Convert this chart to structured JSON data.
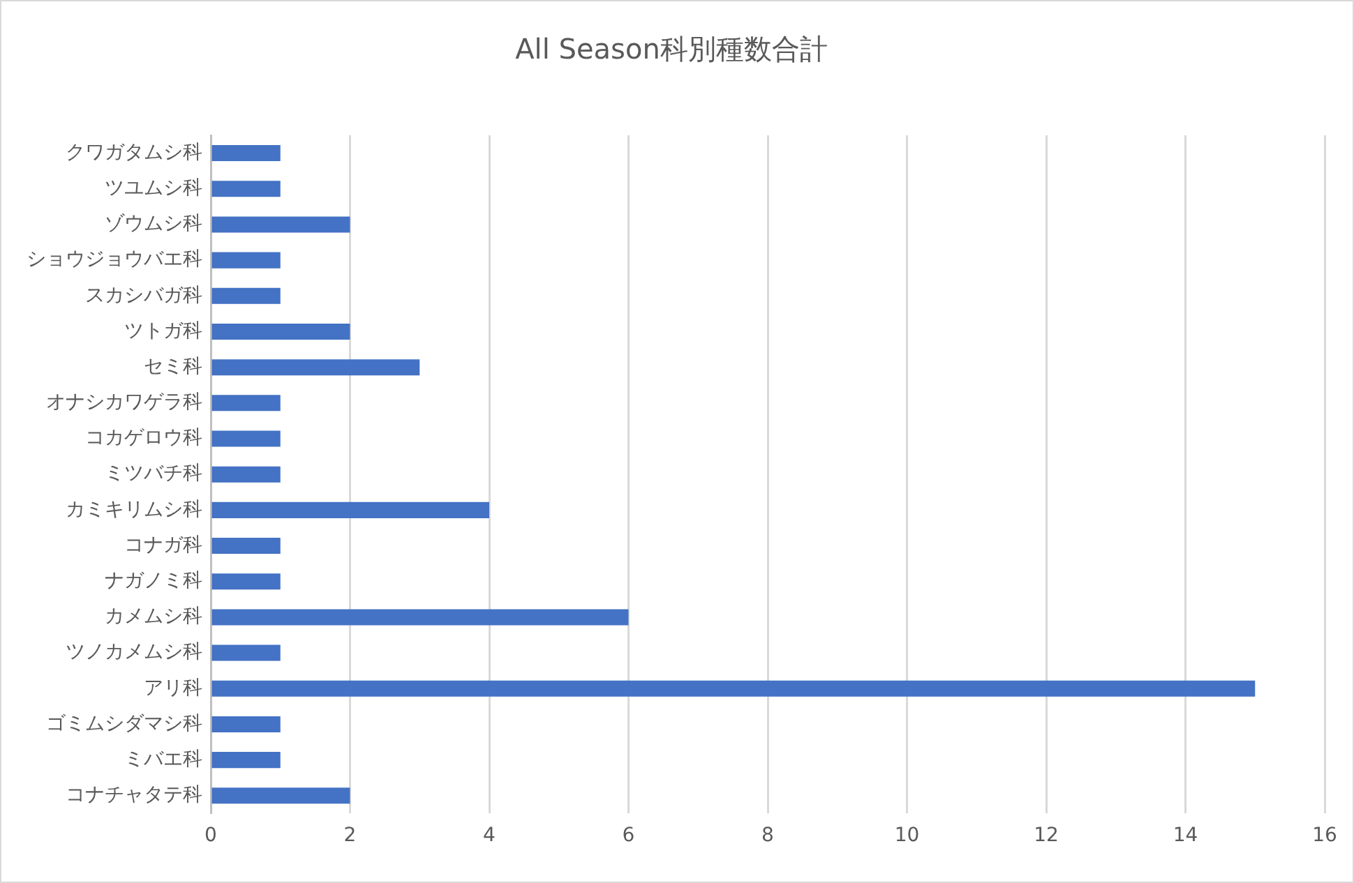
{
  "chart_data": {
    "type": "bar",
    "orientation": "horizontal",
    "title": "All Season科別種数合計",
    "categories": [
      "クワガタムシ科",
      "ツユムシ科",
      "ゾウムシ科",
      "ショウジョウバエ科",
      "スカシバガ科",
      "ツトガ科",
      "セミ科",
      "オナシカワゲラ科",
      "コカゲロウ科",
      "ミツバチ科",
      "カミキリムシ科",
      "コナガ科",
      "ナガノミ科",
      "カメムシ科",
      "ツノカメムシ科",
      "アリ科",
      "ゴミムシダマシ科",
      "ミバエ科",
      "コナチャタテ科"
    ],
    "values": [
      1,
      1,
      2,
      1,
      1,
      2,
      3,
      1,
      1,
      1,
      4,
      1,
      1,
      6,
      1,
      15,
      1,
      1,
      2
    ],
    "color": "#4472c4",
    "xlim": [
      0,
      16
    ],
    "xticks": [
      0,
      2,
      4,
      6,
      8,
      10,
      12,
      14,
      16
    ],
    "grid": "x"
  }
}
